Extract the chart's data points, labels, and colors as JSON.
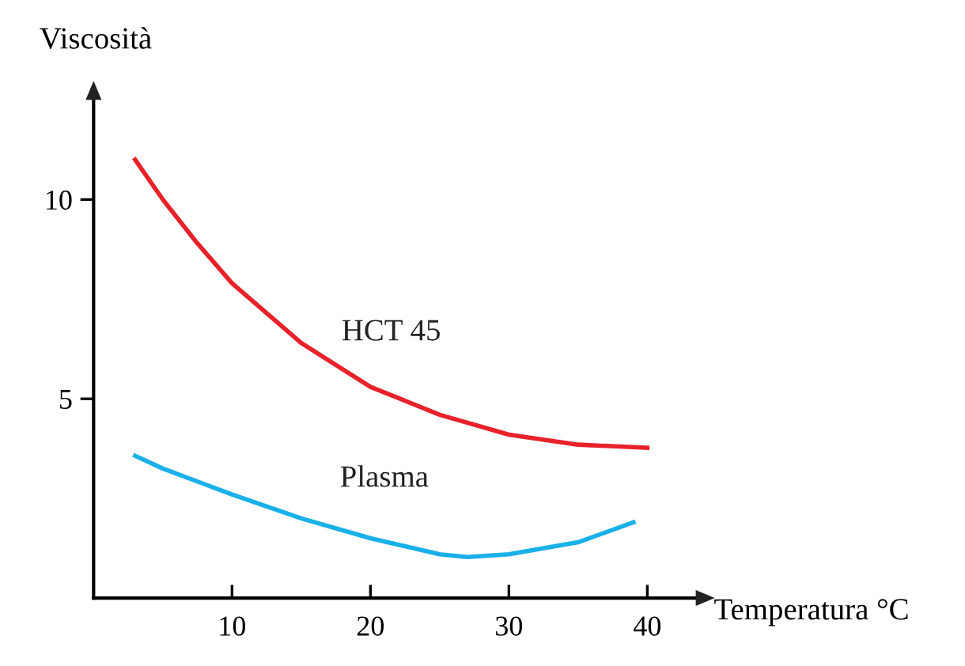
{
  "chart_data": {
    "type": "line",
    "xlabel": "Temperatura °C",
    "ylabel": "Viscosità",
    "xlim": [
      0,
      43.5
    ],
    "ylim": [
      0,
      12.5
    ],
    "xticks": [
      10,
      20,
      30,
      40
    ],
    "yticks": [
      5,
      10
    ],
    "grid": false,
    "legend": false,
    "marker": "none",
    "line_style": "solid",
    "series": [
      {
        "name": "HCT 45",
        "color": "#e8222a",
        "x": [
          3,
          5,
          7.5,
          10,
          15,
          20,
          25,
          30,
          35,
          40
        ],
        "values": [
          11.0,
          10.0,
          8.9,
          7.9,
          6.4,
          5.3,
          4.6,
          4.1,
          3.85,
          3.77
        ]
      },
      {
        "name": "Plasma",
        "color": "#1ab0e8",
        "x": [
          3,
          5,
          10,
          15,
          20,
          25,
          27,
          30,
          35,
          39
        ],
        "values": [
          3.57,
          3.25,
          2.6,
          2.0,
          1.5,
          1.1,
          1.03,
          1.1,
          1.4,
          1.9
        ]
      }
    ]
  }
}
